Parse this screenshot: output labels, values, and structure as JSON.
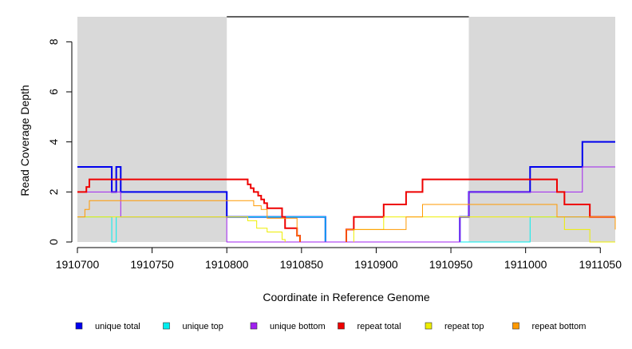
{
  "chart_data": {
    "type": "line",
    "title": "",
    "xlabel": "Coordinate in Reference Genome",
    "ylabel": "Read Coverage Depth",
    "xlim": [
      1910700,
      1911060
    ],
    "ylim": [
      0,
      9
    ],
    "x_ticks": [
      1910700,
      1910750,
      1910800,
      1910850,
      1910900,
      1910950,
      1911000,
      1911050
    ],
    "x_tick_labels": [
      "1910700",
      "1910750",
      "1910800",
      "1910850",
      "1910900",
      "1910950",
      "1911000",
      "1911050"
    ],
    "y_ticks": [
      0,
      2,
      4,
      6,
      8
    ],
    "y_tick_labels": [
      "0",
      "2",
      "4",
      "6",
      "8"
    ],
    "shaded_regions": [
      {
        "x_start": 1910700,
        "x_end": 1910800,
        "color": "#d9d9d9"
      },
      {
        "x_start": 1910962,
        "x_end": 1911060,
        "color": "#d9d9d9"
      }
    ],
    "gap_line": {
      "x_start": 1910800,
      "x_end": 1910962,
      "y": 9,
      "color": "#000000"
    },
    "legend_position": "bottom",
    "series": [
      {
        "name": "unique total",
        "color": "#0000ee",
        "width": 2,
        "segments": [
          [
            [
              1910700,
              3
            ],
            [
              1910723,
              3
            ],
            [
              1910723,
              2
            ],
            [
              1910726,
              2
            ],
            [
              1910726,
              3
            ],
            [
              1910729,
              3
            ],
            [
              1910729,
              2
            ],
            [
              1910800,
              2
            ],
            [
              1910800,
              1
            ],
            [
              1910866,
              1
            ],
            [
              1910866,
              0
            ]
          ],
          [
            [
              1910956,
              0
            ],
            [
              1910956,
              1
            ],
            [
              1910962,
              1
            ],
            [
              1910962,
              2
            ],
            [
              1911003,
              2
            ],
            [
              1911003,
              3
            ],
            [
              1911038,
              3
            ],
            [
              1911038,
              4
            ],
            [
              1911060,
              4
            ]
          ]
        ]
      },
      {
        "name": "unique top",
        "color": "#00eeee",
        "width": 1,
        "segments": [
          [
            [
              1910700,
              1
            ],
            [
              1910723,
              1
            ],
            [
              1910723,
              0
            ],
            [
              1910726,
              0
            ],
            [
              1910726,
              1
            ],
            [
              1910866,
              1
            ],
            [
              1910866,
              0
            ]
          ],
          [
            [
              1910956,
              0
            ],
            [
              1911003,
              0
            ],
            [
              1911003,
              1
            ],
            [
              1911060,
              1
            ]
          ]
        ]
      },
      {
        "name": "unique bottom",
        "color": "#a020f0",
        "width": 1,
        "segments": [
          [
            [
              1910700,
              2
            ],
            [
              1910729,
              2
            ],
            [
              1910729,
              1
            ],
            [
              1910800,
              1
            ],
            [
              1910800,
              0
            ],
            [
              1910956,
              0
            ],
            [
              1910956,
              1
            ],
            [
              1910962,
              1
            ],
            [
              1910962,
              2
            ],
            [
              1911038,
              2
            ],
            [
              1911038,
              3
            ],
            [
              1911060,
              3
            ]
          ]
        ]
      },
      {
        "name": "repeat total",
        "color": "#ee0000",
        "width": 2,
        "segments": [
          [
            [
              1910700,
              2
            ],
            [
              1910706,
              2
            ],
            [
              1910706,
              2.2
            ],
            [
              1910708,
              2.2
            ],
            [
              1910708,
              2.5
            ],
            [
              1910814,
              2.5
            ],
            [
              1910814,
              2.3
            ],
            [
              1910816,
              2.3
            ],
            [
              1910816,
              2.15
            ],
            [
              1910818,
              2.15
            ],
            [
              1910818,
              2.0
            ],
            [
              1910821,
              2.0
            ],
            [
              1910821,
              1.85
            ],
            [
              1910823,
              1.85
            ],
            [
              1910823,
              1.7
            ],
            [
              1910825,
              1.7
            ],
            [
              1910825,
              1.55
            ],
            [
              1910827,
              1.55
            ],
            [
              1910827,
              1.35
            ],
            [
              1910837,
              1.35
            ],
            [
              1910837,
              1.0
            ],
            [
              1910839,
              1.0
            ],
            [
              1910839,
              0.55
            ],
            [
              1910847,
              0.55
            ],
            [
              1910847,
              0.25
            ],
            [
              1910849,
              0.25
            ],
            [
              1910849,
              0
            ]
          ],
          [
            [
              1910880,
              0
            ],
            [
              1910880,
              0.5
            ],
            [
              1910885,
              0.5
            ],
            [
              1910885,
              1.0
            ],
            [
              1910905,
              1.0
            ],
            [
              1910905,
              1.5
            ],
            [
              1910920,
              1.5
            ],
            [
              1910920,
              2.0
            ],
            [
              1910931,
              2.0
            ],
            [
              1910931,
              2.5
            ],
            [
              1911021,
              2.5
            ],
            [
              1911021,
              2.0
            ],
            [
              1911026,
              2.0
            ],
            [
              1911026,
              1.5
            ],
            [
              1911043,
              1.5
            ],
            [
              1911043,
              1.0
            ],
            [
              1911060,
              1.0
            ]
          ]
        ]
      },
      {
        "name": "repeat top",
        "color": "#eeee00",
        "width": 1,
        "segments": [
          [
            [
              1910700,
              1
            ],
            [
              1910814,
              1
            ],
            [
              1910814,
              0.85
            ],
            [
              1910820,
              0.85
            ],
            [
              1910820,
              0.55
            ],
            [
              1910827,
              0.55
            ],
            [
              1910827,
              0.4
            ],
            [
              1910837,
              0.4
            ],
            [
              1910837,
              0.1
            ],
            [
              1910839,
              0.1
            ],
            [
              1910839,
              0
            ]
          ],
          [
            [
              1910885,
              0
            ],
            [
              1910885,
              0.5
            ],
            [
              1910905,
              0.5
            ],
            [
              1910905,
              1.0
            ],
            [
              1911026,
              1.0
            ],
            [
              1911026,
              0.5
            ],
            [
              1911043,
              0.5
            ],
            [
              1911043,
              0
            ],
            [
              1911060,
              0
            ]
          ]
        ]
      },
      {
        "name": "repeat bottom",
        "color": "#ff9900",
        "width": 1,
        "segments": [
          [
            [
              1910700,
              1
            ],
            [
              1910705,
              1
            ],
            [
              1910705,
              1.3
            ],
            [
              1910708,
              1.3
            ],
            [
              1910708,
              1.65
            ],
            [
              1910818,
              1.65
            ],
            [
              1910818,
              1.45
            ],
            [
              1910823,
              1.45
            ],
            [
              1910823,
              1.3
            ],
            [
              1910827,
              1.3
            ],
            [
              1910827,
              0.95
            ],
            [
              1910847,
              0.95
            ],
            [
              1910847,
              0.25
            ],
            [
              1910849,
              0.25
            ],
            [
              1910849,
              0
            ]
          ],
          [
            [
              1910880,
              0
            ],
            [
              1910880,
              0.5
            ],
            [
              1910920,
              0.5
            ],
            [
              1910920,
              1.0
            ],
            [
              1910931,
              1.0
            ],
            [
              1910931,
              1.5
            ],
            [
              1911021,
              1.5
            ],
            [
              1911021,
              1.0
            ],
            [
              1911060,
              1.0
            ],
            [
              1911060,
              0.5
            ]
          ]
        ]
      }
    ]
  }
}
